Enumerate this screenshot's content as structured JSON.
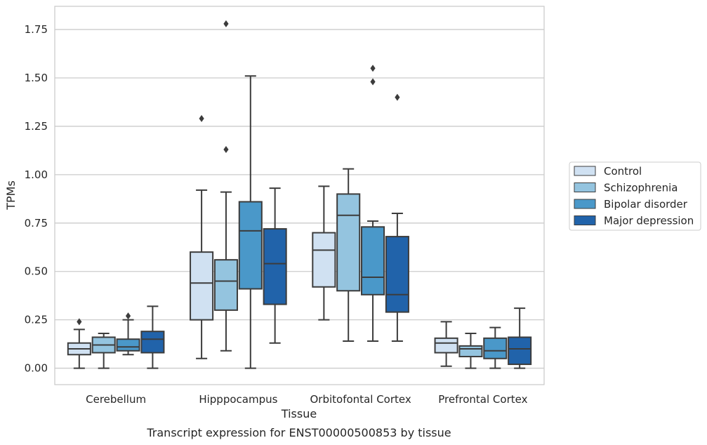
{
  "chart_data": {
    "type": "boxplot",
    "title": "",
    "caption": "Transcript expression for ENST00000500853 by tissue",
    "xlabel": "Tissue",
    "ylabel": "TPMs",
    "ylim": [
      -0.085,
      1.87
    ],
    "yticks": [
      "0.00",
      "0.25",
      "0.50",
      "0.75",
      "1.00",
      "1.25",
      "1.50",
      "1.75"
    ],
    "categories": [
      "Cerebellum",
      "Hipppocampus",
      "Orbitofontal Cortex",
      "Prefrontal Cortex"
    ],
    "grid": "horizontal",
    "legend_position": "right",
    "series": [
      {
        "name": "Control",
        "color": "#d0e1f2",
        "boxes": [
          {
            "whisker_low": 0.0,
            "q1": 0.07,
            "median": 0.1,
            "q3": 0.13,
            "whisker_high": 0.2,
            "outliers": [
              0.24
            ]
          },
          {
            "whisker_low": 0.05,
            "q1": 0.25,
            "median": 0.44,
            "q3": 0.6,
            "whisker_high": 0.92,
            "outliers": [
              1.29
            ]
          },
          {
            "whisker_low": 0.25,
            "q1": 0.42,
            "median": 0.61,
            "q3": 0.7,
            "whisker_high": 0.94,
            "outliers": []
          },
          {
            "whisker_low": 0.01,
            "q1": 0.08,
            "median": 0.13,
            "q3": 0.155,
            "whisker_high": 0.24,
            "outliers": []
          }
        ]
      },
      {
        "name": "Schizophrenia",
        "color": "#94c4df",
        "boxes": [
          {
            "whisker_low": 0.0,
            "q1": 0.08,
            "median": 0.12,
            "q3": 0.16,
            "whisker_high": 0.18,
            "outliers": []
          },
          {
            "whisker_low": 0.09,
            "q1": 0.3,
            "median": 0.45,
            "q3": 0.56,
            "whisker_high": 0.91,
            "outliers": [
              1.13,
              1.78
            ]
          },
          {
            "whisker_low": 0.14,
            "q1": 0.4,
            "median": 0.79,
            "q3": 0.9,
            "whisker_high": 1.03,
            "outliers": []
          },
          {
            "whisker_low": 0.0,
            "q1": 0.06,
            "median": 0.1,
            "q3": 0.115,
            "whisker_high": 0.18,
            "outliers": []
          }
        ]
      },
      {
        "name": "Bipolar disorder",
        "color": "#4a98c9",
        "boxes": [
          {
            "whisker_low": 0.07,
            "q1": 0.09,
            "median": 0.11,
            "q3": 0.15,
            "whisker_high": 0.25,
            "outliers": [
              0.27
            ]
          },
          {
            "whisker_low": 0.0,
            "q1": 0.41,
            "median": 0.71,
            "q3": 0.86,
            "whisker_high": 1.51,
            "outliers": []
          },
          {
            "whisker_low": 0.14,
            "q1": 0.38,
            "median": 0.47,
            "q3": 0.73,
            "whisker_high": 0.76,
            "outliers": [
              1.48,
              1.55
            ]
          },
          {
            "whisker_low": 0.0,
            "q1": 0.05,
            "median": 0.09,
            "q3": 0.155,
            "whisker_high": 0.21,
            "outliers": []
          }
        ]
      },
      {
        "name": "Major depression",
        "color": "#2163aa",
        "boxes": [
          {
            "whisker_low": 0.0,
            "q1": 0.08,
            "median": 0.15,
            "q3": 0.19,
            "whisker_high": 0.32,
            "outliers": []
          },
          {
            "whisker_low": 0.13,
            "q1": 0.33,
            "median": 0.54,
            "q3": 0.72,
            "whisker_high": 0.93,
            "outliers": []
          },
          {
            "whisker_low": 0.14,
            "q1": 0.29,
            "median": 0.38,
            "q3": 0.68,
            "whisker_high": 0.8,
            "outliers": [
              1.4
            ]
          },
          {
            "whisker_low": 0.0,
            "q1": 0.02,
            "median": 0.1,
            "q3": 0.16,
            "whisker_high": 0.31,
            "outliers": []
          }
        ]
      }
    ]
  }
}
